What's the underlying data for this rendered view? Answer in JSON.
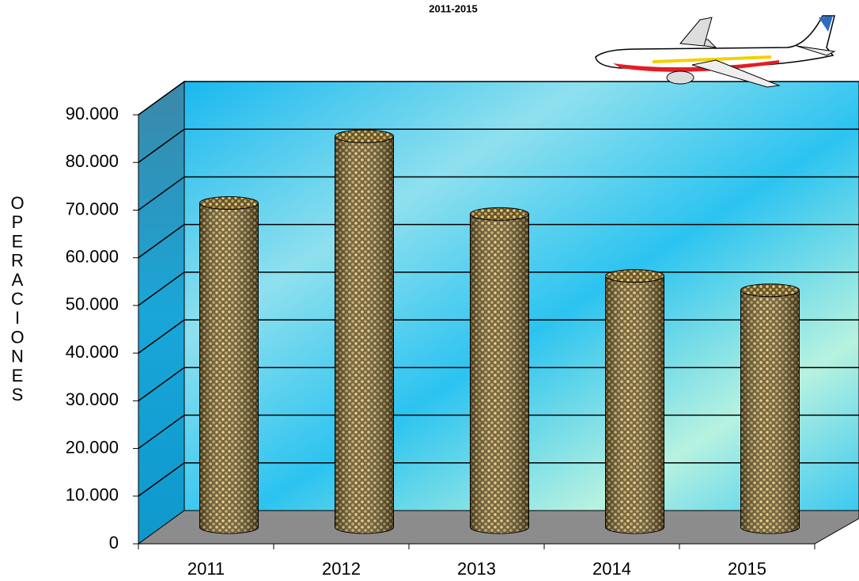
{
  "chart_data": {
    "type": "bar",
    "title": "2011-2015",
    "y_label": "OPERACIONES",
    "categories": [
      "2011",
      "2012",
      "2013",
      "2014",
      "2015"
    ],
    "values": [
      68000,
      82000,
      65700,
      52700,
      49700
    ],
    "ylim": [
      0,
      90000
    ],
    "yticks": [
      0,
      {
        "value": 10000,
        "label": "10.000"
      },
      {
        "value": 20000,
        "label": "20.000"
      },
      {
        "value": 30000,
        "label": "30.000"
      },
      {
        "value": 40000,
        "label": "40.000"
      },
      {
        "value": 50000,
        "label": "50.000"
      },
      {
        "value": 60000,
        "label": "60.000"
      },
      {
        "value": 70000,
        "label": "70.000"
      },
      {
        "value": 80000,
        "label": "80.000"
      },
      {
        "value": 90000,
        "label": "90.000"
      }
    ],
    "grid": true
  }
}
